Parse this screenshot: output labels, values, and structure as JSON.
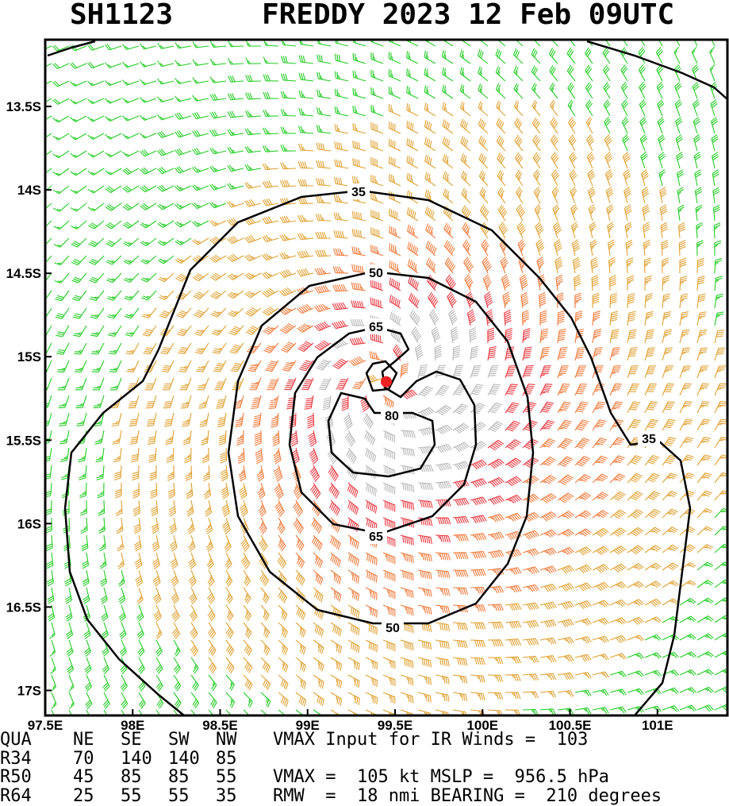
{
  "header": {
    "storm_id": "SH1123",
    "title": "FREDDY 2023 12 Feb 09UTC"
  },
  "map": {
    "lon_range": [
      97.5,
      101.4
    ],
    "lat_range": [
      -17.15,
      -13.1
    ],
    "x_ticks": [
      "97.5E",
      "98E",
      "98.5E",
      "99E",
      "99.5E",
      "100E",
      "100.5E",
      "101E"
    ],
    "x_tick_values": [
      97.5,
      98,
      98.5,
      99,
      99.5,
      100,
      100.5,
      101
    ],
    "y_ticks": [
      "13.5S",
      "14S",
      "14.5S",
      "15S",
      "15.5S",
      "16S",
      "16.5S",
      "17S"
    ],
    "y_tick_values": [
      -13.5,
      -14,
      -14.5,
      -15,
      -15.5,
      -16,
      -16.5,
      -17
    ],
    "center": {
      "lon": 99.45,
      "lat": -15.15
    },
    "contour_labels": [
      "35",
      "50",
      "65",
      "80",
      "65",
      "50",
      "35"
    ],
    "colors": {
      "lt34": "#22cc22",
      "34_50": "#e0a030",
      "50_64": "#ef7a3a",
      "64_80": "#e83840",
      "gt80": "#b8b8b8",
      "center_dot": "#ee2222",
      "contour": "#000000"
    }
  },
  "info": {
    "rows": [
      [
        "QUA",
        "NE",
        "SE",
        "SW",
        "NW",
        "VMAX Input for IR Winds =  103"
      ],
      [
        "R34",
        "70",
        "140",
        "140",
        "85",
        ""
      ],
      [
        "R50",
        "45",
        "85",
        "85",
        "55",
        "VMAX =  105 kt MSLP =  956.5 hPa"
      ],
      [
        "R64",
        "25",
        "55",
        "55",
        "35",
        "RMW  =  18 nmi BEARING =  210 degrees"
      ]
    ]
  }
}
